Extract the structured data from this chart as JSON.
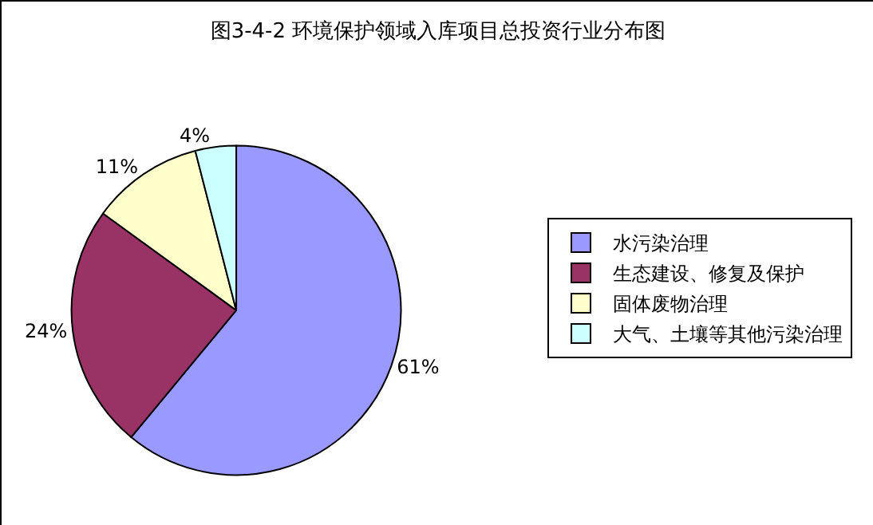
{
  "chart_data": {
    "type": "pie",
    "title": "图3-4-2 环境保护领域入库项目总投资行业分布图",
    "categories": [
      "水污染治理",
      "生态建设、修复及保护",
      "固体废物治理",
      "大气、土壤等其他污染治理"
    ],
    "values": [
      61,
      24,
      11,
      4
    ],
    "colors": [
      "#9999ff",
      "#993366",
      "#ffffcc",
      "#ccffff"
    ],
    "value_labels": [
      "61%",
      "24%",
      "11%",
      "4%"
    ],
    "legend": "right"
  }
}
